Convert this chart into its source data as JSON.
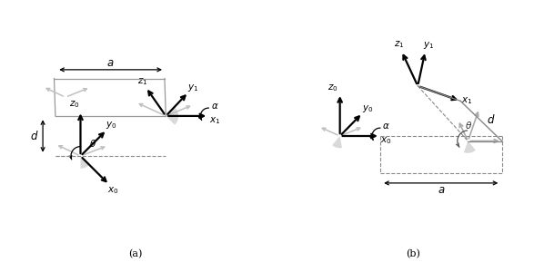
{
  "fig_width": 6.09,
  "fig_height": 3.0,
  "dpi": 100,
  "bg": "#ffffff",
  "black": "#000000",
  "gray": "#aaaaaa",
  "lgray": "#cccccc",
  "dgray": "#555555"
}
